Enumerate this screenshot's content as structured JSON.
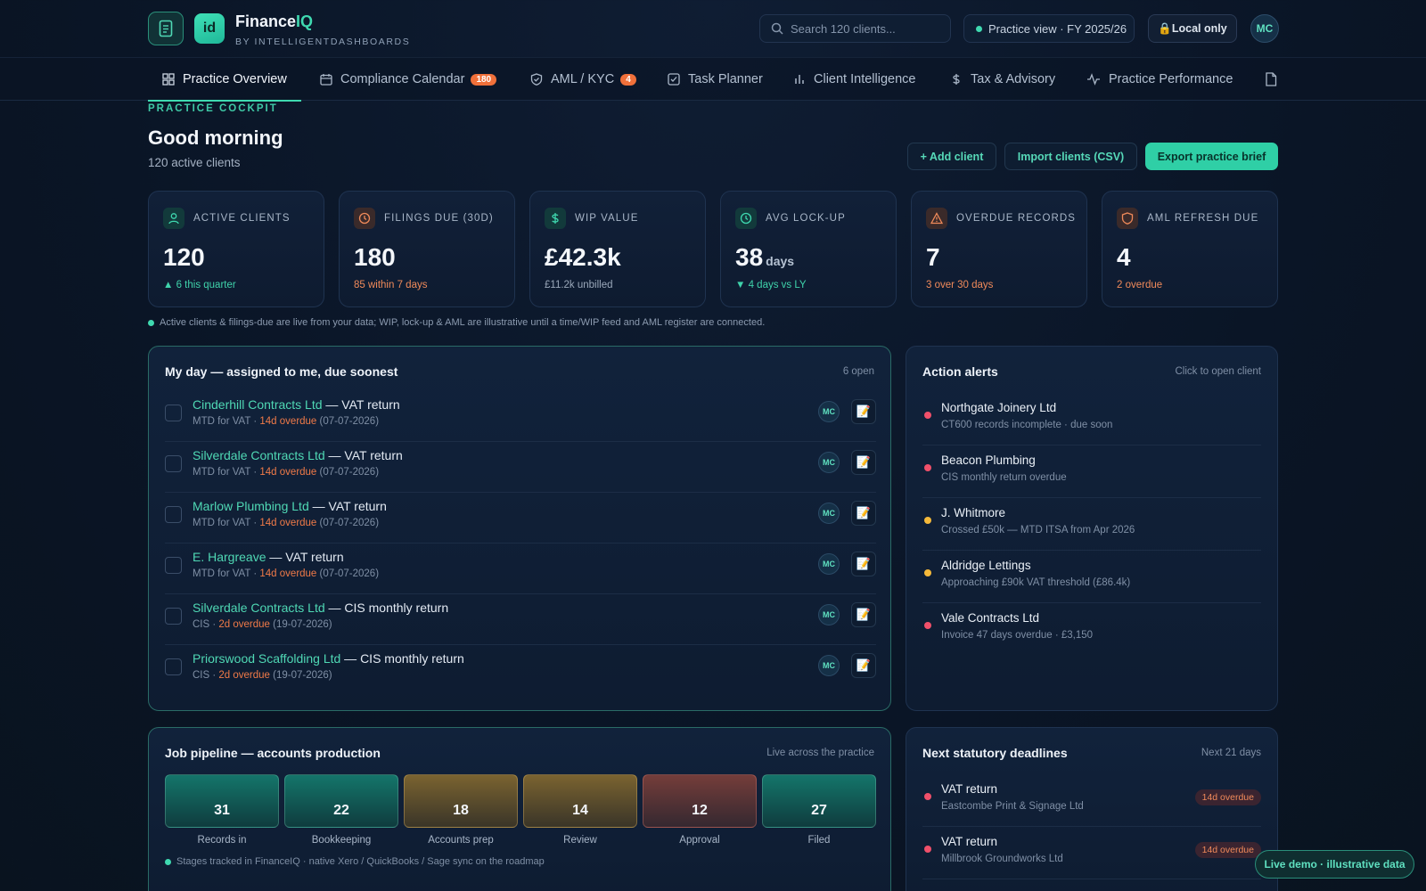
{
  "brand": {
    "name_main": "Finance",
    "name_accent": "IQ",
    "subtitle": "BY INTELLIGENTDASHBOARDS",
    "logo_text": "id"
  },
  "search": {
    "placeholder": "Search 120 clients..."
  },
  "header": {
    "view_label": "Practice view · FY 2025/26",
    "local_label": "🔒Local only",
    "avatar": "MC"
  },
  "nav": {
    "tabs": [
      {
        "label": "Practice Overview",
        "icon": "grid-icon",
        "active": true
      },
      {
        "label": "Compliance Calendar",
        "icon": "calendar-icon",
        "badge": "180"
      },
      {
        "label": "AML / KYC",
        "icon": "shield-check-icon",
        "badge": "4"
      },
      {
        "label": "Task Planner",
        "icon": "checkbox-icon"
      },
      {
        "label": "Client Intelligence",
        "icon": "bar-chart-icon"
      },
      {
        "label": "Tax & Advisory",
        "icon": "dollar-icon"
      },
      {
        "label": "Practice Performance",
        "icon": "activity-icon"
      },
      {
        "label": "",
        "icon": "document-icon"
      }
    ]
  },
  "page": {
    "eyebrow": "PRACTICE COCKPIT",
    "greeting": "Good morning",
    "subtitle": "120 active clients",
    "actions": {
      "add": "+ Add client",
      "import": "Import clients (CSV)",
      "export": "Export practice brief"
    }
  },
  "kpis": [
    {
      "label": "ACTIVE CLIENTS",
      "value": "120",
      "unit": "",
      "sub": "▲ 6 this quarter",
      "tone": "green",
      "icon": "user-icon"
    },
    {
      "label": "FILINGS DUE (30D)",
      "value": "180",
      "unit": "",
      "sub": "85 within 7 days",
      "tone": "orange",
      "icon": "clock-icon"
    },
    {
      "label": "WIP VALUE",
      "value": "£42.3k",
      "unit": "",
      "sub": "£11.2k unbilled",
      "tone": "grey",
      "icon": "dollar-icon"
    },
    {
      "label": "AVG LOCK-UP",
      "value": "38",
      "unit": "days",
      "sub": "▼ 4 days vs LY",
      "tone": "green",
      "icon": "clock-icon"
    },
    {
      "label": "OVERDUE RECORDS",
      "value": "7",
      "unit": "",
      "sub": "3 over 30 days",
      "tone": "orange",
      "icon": "warning-icon"
    },
    {
      "label": "AML REFRESH DUE",
      "value": "4",
      "unit": "",
      "sub": "2 overdue",
      "tone": "orange",
      "icon": "shield-icon"
    }
  ],
  "data_note": "Active clients & filings-due are live from your data; WIP, lock-up & AML are illustrative until a time/WIP feed and AML register are connected.",
  "my_day": {
    "title": "My day — assigned to me, due soonest",
    "meta": "6 open",
    "tasks": [
      {
        "client": "Cinderhill Contracts Ltd",
        "task": " — VAT return",
        "type": "MTD for VAT · ",
        "overdue": "14d overdue",
        "date": " (07-07-2026)",
        "assignee": "MC"
      },
      {
        "client": "Silverdale Contracts Ltd",
        "task": " — VAT return",
        "type": "MTD for VAT · ",
        "overdue": "14d overdue",
        "date": " (07-07-2026)",
        "assignee": "MC"
      },
      {
        "client": "Marlow Plumbing Ltd",
        "task": " — VAT return",
        "type": "MTD for VAT · ",
        "overdue": "14d overdue",
        "date": " (07-07-2026)",
        "assignee": "MC"
      },
      {
        "client": "E. Hargreave",
        "task": " — VAT return",
        "type": "MTD for VAT · ",
        "overdue": "14d overdue",
        "date": " (07-07-2026)",
        "assignee": "MC"
      },
      {
        "client": "Silverdale Contracts Ltd",
        "task": " — CIS monthly return",
        "type": "CIS · ",
        "overdue": "2d overdue",
        "date": " (19-07-2026)",
        "assignee": "MC"
      },
      {
        "client": "Priorswood Scaffolding Ltd",
        "task": " — CIS monthly return",
        "type": "CIS · ",
        "overdue": "2d overdue",
        "date": " (19-07-2026)",
        "assignee": "MC"
      }
    ]
  },
  "alerts": {
    "title": "Action alerts",
    "meta": "Click to open client",
    "items": [
      {
        "name": "Northgate Joinery Ltd",
        "detail": "CT600 records incomplete · due soon",
        "color": "#f0506a"
      },
      {
        "name": "Beacon Plumbing",
        "detail": "CIS monthly return overdue",
        "color": "#f0506a"
      },
      {
        "name": "J. Whitmore",
        "detail": "Crossed £50k — MTD ITSA from Apr 2026",
        "color": "#f5b93a"
      },
      {
        "name": "Aldridge Lettings",
        "detail": "Approaching £90k VAT threshold (£86.4k)",
        "color": "#f5b93a"
      },
      {
        "name": "Vale Contracts Ltd",
        "detail": "Invoice 47 days overdue · £3,150",
        "color": "#f0506a"
      }
    ]
  },
  "pipeline": {
    "title": "Job pipeline — accounts production",
    "meta": "Live across the practice",
    "stages": [
      {
        "label": "Records in",
        "count": "31",
        "color": "teal"
      },
      {
        "label": "Bookkeeping",
        "count": "22",
        "color": "teal"
      },
      {
        "label": "Accounts prep",
        "count": "18",
        "color": "amber"
      },
      {
        "label": "Review",
        "count": "14",
        "color": "amber"
      },
      {
        "label": "Approval",
        "count": "12",
        "color": "red"
      },
      {
        "label": "Filed",
        "count": "27",
        "color": "teal"
      }
    ],
    "note": "Stages tracked in FinanceIQ · native Xero / QuickBooks / Sage sync on the roadmap"
  },
  "deadlines": {
    "title": "Next statutory deadlines",
    "meta": "Next 21 days",
    "items": [
      {
        "name": "VAT return",
        "client": "Eastcombe Print & Signage Ltd",
        "status": "14d overdue"
      },
      {
        "name": "VAT return",
        "client": "Millbrook Groundworks Ltd",
        "status": "14d overdue"
      }
    ]
  },
  "live_badge": "Live demo · illustrative data"
}
